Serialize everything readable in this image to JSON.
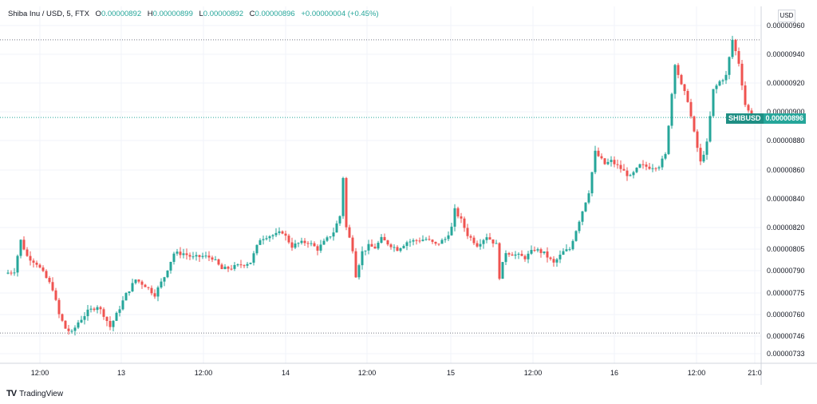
{
  "header": {
    "symbol": "Shiba Inu / USD, 5, FTX",
    "o_label": "O",
    "o_value": "0.00000892",
    "h_label": "H",
    "h_value": "0.00000899",
    "l_label": "L",
    "l_value": "0.00000892",
    "c_label": "C",
    "c_value": "0.00000896",
    "change": "+0.00000004 (+0.45%)"
  },
  "currency_button": "USD",
  "price_tag": {
    "ticker": "SHIBUSD",
    "value": "0.00000896"
  },
  "branding": {
    "logo": "TV",
    "name": "TradingView"
  },
  "colors": {
    "up": "#26a69a",
    "down": "#ef5350",
    "grid": "#f0f3fa",
    "text": "#131722"
  },
  "chart_data": {
    "type": "candlestick",
    "interval": "5",
    "y_axis": {
      "ticks": [
        "0.00000733",
        "0.00000746",
        "0.00000760",
        "0.00000775",
        "0.00000790",
        "0.00000805",
        "0.00000820",
        "0.00000840",
        "0.00000860",
        "0.00000880",
        "0.00000900",
        "0.00000920",
        "0.00000940",
        "0.00000960"
      ],
      "ylim": [
        7.3e-06,
        9.6e-06
      ],
      "scale": "log",
      "position": "right"
    },
    "x_axis": {
      "ticks": [
        "12:00",
        "13",
        "12:00",
        "14",
        "12:00",
        "15",
        "12:00",
        "16",
        "12:00",
        "21:0"
      ]
    },
    "reference_lines": [
      {
        "value": 9.5e-06,
        "style": "dotted",
        "color": "#787b86"
      },
      {
        "value": 8.96e-06,
        "style": "dotted",
        "color": "#26a69a"
      },
      {
        "value": 7.48e-06,
        "style": "dotted",
        "color": "#787b86"
      }
    ],
    "series": [
      {
        "anchors": [
          [
            0,
            7.88
          ],
          [
            3,
            7.9
          ],
          [
            5,
            8.11
          ],
          [
            7,
            8.0
          ],
          [
            10,
            7.95
          ],
          [
            13,
            7.85
          ],
          [
            15,
            7.78
          ],
          [
            17,
            7.6
          ],
          [
            19,
            7.51
          ],
          [
            21,
            7.48
          ],
          [
            23,
            7.55
          ],
          [
            26,
            7.62
          ],
          [
            29,
            7.66
          ],
          [
            31,
            7.6
          ],
          [
            33,
            7.52
          ],
          [
            35,
            7.6
          ],
          [
            38,
            7.74
          ],
          [
            41,
            7.84
          ],
          [
            44,
            7.8
          ],
          [
            47,
            7.74
          ],
          [
            50,
            7.86
          ],
          [
            53,
            8.02
          ],
          [
            56,
            8.02
          ],
          [
            59,
            7.99
          ],
          [
            62,
            8.0
          ],
          [
            65,
            7.99
          ],
          [
            68,
            7.91
          ],
          [
            71,
            7.92
          ],
          [
            74,
            7.94
          ],
          [
            77,
            7.96
          ],
          [
            80,
            8.12
          ],
          [
            82,
            8.14
          ],
          [
            85,
            8.15
          ],
          [
            87,
            8.17
          ],
          [
            90,
            8.07
          ],
          [
            92,
            8.09
          ],
          [
            95,
            8.1
          ],
          [
            98,
            8.05
          ],
          [
            101,
            8.12
          ],
          [
            103,
            8.17
          ],
          [
            105,
            8.28
          ],
          [
            106,
            8.55
          ],
          [
            107,
            8.2
          ],
          [
            109,
            8.05
          ],
          [
            110,
            7.87
          ],
          [
            112,
            8.03
          ],
          [
            114,
            8.07
          ],
          [
            116,
            8.06
          ],
          [
            118,
            8.12
          ],
          [
            120,
            8.09
          ],
          [
            123,
            8.05
          ],
          [
            126,
            8.1
          ],
          [
            129,
            8.11
          ],
          [
            132,
            8.12
          ],
          [
            135,
            8.08
          ],
          [
            138,
            8.12
          ],
          [
            140,
            8.2
          ],
          [
            141,
            8.32
          ],
          [
            143,
            8.25
          ],
          [
            145,
            8.15
          ],
          [
            148,
            8.08
          ],
          [
            151,
            8.14
          ],
          [
            154,
            8.08
          ],
          [
            155,
            7.86
          ],
          [
            157,
            8.03
          ],
          [
            160,
            8.01
          ],
          [
            163,
            7.99
          ],
          [
            166,
            8.05
          ],
          [
            169,
            8.02
          ],
          [
            172,
            7.95
          ],
          [
            175,
            8.03
          ],
          [
            177,
            8.05
          ],
          [
            180,
            8.25
          ],
          [
            183,
            8.45
          ],
          [
            185,
            8.72
          ],
          [
            188,
            8.64
          ],
          [
            190,
            8.66
          ],
          [
            193,
            8.61
          ],
          [
            196,
            8.55
          ],
          [
            199,
            8.63
          ],
          [
            202,
            8.62
          ],
          [
            205,
            8.63
          ],
          [
            207,
            8.7
          ],
          [
            210,
            9.34
          ],
          [
            212,
            9.18
          ],
          [
            214,
            9.08
          ],
          [
            216,
            8.85
          ],
          [
            218,
            8.65
          ],
          [
            220,
            8.78
          ],
          [
            222,
            9.15
          ],
          [
            224,
            9.21
          ],
          [
            226,
            9.25
          ],
          [
            228,
            9.5
          ],
          [
            230,
            9.34
          ],
          [
            232,
            9.05
          ],
          [
            234,
            8.96
          ]
        ]
      }
    ]
  }
}
